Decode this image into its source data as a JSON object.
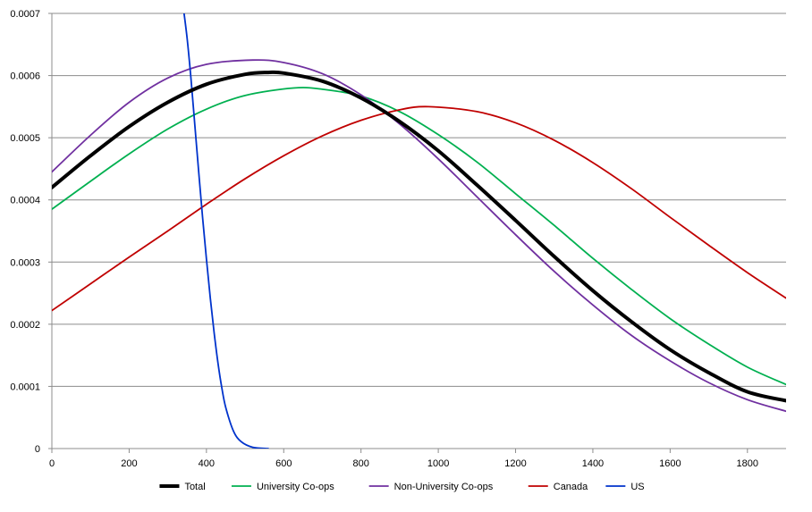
{
  "chart_data": {
    "type": "line",
    "title": "",
    "xlabel": "",
    "ylabel": "",
    "xlim": [
      0,
      1900
    ],
    "ylim": [
      0,
      0.0007
    ],
    "x_ticks": [
      0,
      200,
      400,
      600,
      800,
      1000,
      1200,
      1400,
      1600,
      1800
    ],
    "x_tick_labels": [
      "0",
      "200",
      "400",
      "600",
      "800",
      "1000",
      "1200",
      "1400",
      "1600",
      "1800"
    ],
    "y_ticks": [
      0,
      0.0001,
      0.0002,
      0.0003,
      0.0004,
      0.0005,
      0.0006,
      0.0007
    ],
    "y_tick_labels": [
      "0",
      "0.0001",
      "0.0002",
      "0.0003",
      "0.0004",
      "0.0005",
      "0.0006",
      "0.0007"
    ],
    "grid": "horizontal",
    "legend_position": "bottom",
    "series": [
      {
        "name": "Total",
        "color": "#000000",
        "x": [
          0,
          100,
          200,
          300,
          400,
          500,
          560,
          600,
          700,
          800,
          900,
          1000,
          1100,
          1200,
          1300,
          1400,
          1500,
          1600,
          1700,
          1800,
          1900
        ],
        "y": [
          0.00042,
          0.000471,
          0.000518,
          0.000557,
          0.000586,
          0.000602,
          0.000605,
          0.000604,
          0.000591,
          0.000564,
          0.000526,
          0.000479,
          0.000424,
          0.000367,
          0.000309,
          0.000254,
          0.000204,
          0.000159,
          0.000122,
          9.13e-05,
          7.7e-05
        ]
      },
      {
        "name": "University Co-ops",
        "color": "#00b050",
        "x": [
          0,
          100,
          200,
          300,
          400,
          500,
          625,
          700,
          800,
          900,
          1000,
          1100,
          1200,
          1300,
          1400,
          1500,
          1600,
          1700,
          1800,
          1900
        ],
        "y": [
          0.000385,
          0.00043,
          0.000474,
          0.000514,
          0.000546,
          0.000568,
          0.00058,
          0.000578,
          0.000567,
          0.000542,
          0.000505,
          0.000461,
          0.00041,
          0.000359,
          0.000306,
          0.000256,
          0.000209,
          0.000168,
          0.000131,
          0.000103
        ]
      },
      {
        "name": "Non-University Co-ops",
        "color": "#7030a0",
        "x": [
          0,
          100,
          200,
          300,
          400,
          520,
          600,
          700,
          800,
          900,
          1000,
          1100,
          1200,
          1300,
          1400,
          1500,
          1600,
          1700,
          1800,
          1900
        ],
        "y": [
          0.000445,
          0.000504,
          0.000557,
          0.000596,
          0.000618,
          0.000625,
          0.000621,
          0.000603,
          0.000569,
          0.000522,
          0.000466,
          0.000405,
          0.000344,
          0.000285,
          0.000231,
          0.000182,
          0.000141,
          0.000106,
          7.86e-05,
          6e-05
        ]
      },
      {
        "name": "Canada",
        "color": "#c00000",
        "x": [
          0,
          100,
          200,
          300,
          400,
          500,
          600,
          700,
          800,
          900,
          975,
          1100,
          1200,
          1300,
          1400,
          1500,
          1600,
          1700,
          1800,
          1900
        ],
        "y": [
          0.000222,
          0.000265,
          0.000308,
          0.00035,
          0.000393,
          0.000434,
          0.000471,
          0.000503,
          0.000528,
          0.000545,
          0.00055,
          0.000542,
          0.000524,
          0.000496,
          0.00046,
          0.000418,
          0.000372,
          0.000327,
          0.000283,
          0.000242
        ]
      },
      {
        "name": "US",
        "color": "#0033cc",
        "x": [
          340,
          350,
          360,
          370,
          380,
          390,
          400,
          410,
          420,
          430,
          440,
          450,
          470,
          490,
          520,
          560
        ],
        "y": [
          0.00071,
          0.00066,
          0.000595,
          0.00052,
          0.000445,
          0.000372,
          0.000305,
          0.000242,
          0.000186,
          0.000137,
          9.7e-05,
          6.6e-05,
          2.8e-05,
          1.1e-05,
          2e-06,
          0
        ]
      }
    ]
  }
}
